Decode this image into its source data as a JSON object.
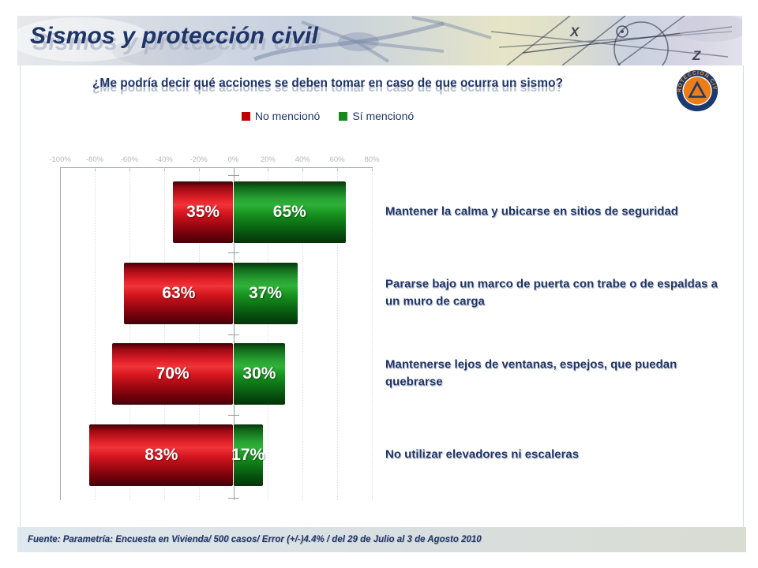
{
  "header": {
    "title": "Sismos y protección civil"
  },
  "logo": {
    "text": "PROTECCIÓN CIVIL"
  },
  "question": {
    "text": "¿Me podría decir qué acciones se deben tomar en caso de que ocurra un sismo?"
  },
  "legend": {
    "items": [
      {
        "label": "No mencionó",
        "color": "#c00000"
      },
      {
        "label": "Sí mencionó",
        "color": "#178a1e"
      }
    ]
  },
  "chart_data": {
    "type": "bar",
    "orientation": "horizontal-diverging",
    "title": "¿Me podría decir qué acciones se deben tomar en caso de que ocurra un sismo?",
    "categories": [
      "Mantener la calma y ubicarse en sitios de seguridad",
      "Pararse bajo un marco de puerta con trabe o de espaldas a un muro de carga",
      "Mantenerse lejos de ventanas, espejos, que puedan quebrarse",
      "No utilizar elevadores ni escaleras"
    ],
    "series": [
      {
        "name": "No mencionó",
        "values": [
          35,
          63,
          70,
          83
        ],
        "color": "#c00000",
        "direction": "left"
      },
      {
        "name": "Sí mencionó",
        "values": [
          65,
          37,
          30,
          17
        ],
        "color": "#178a1e",
        "direction": "right"
      }
    ],
    "value_label_format": "percent",
    "axis": {
      "position": "top",
      "tick_values": [
        -100,
        -80,
        -60,
        -40,
        -20,
        0,
        20,
        40,
        60,
        80
      ],
      "min": -100,
      "max": 80,
      "grid": "dotted"
    },
    "legend_position": "top"
  },
  "footer": {
    "source": "Fuente: Parametría: Encuesta en Vivienda/ 500 casos/ Error (+/-)4.4% / del 29 de Julio al 3 de Agosto 2010"
  }
}
